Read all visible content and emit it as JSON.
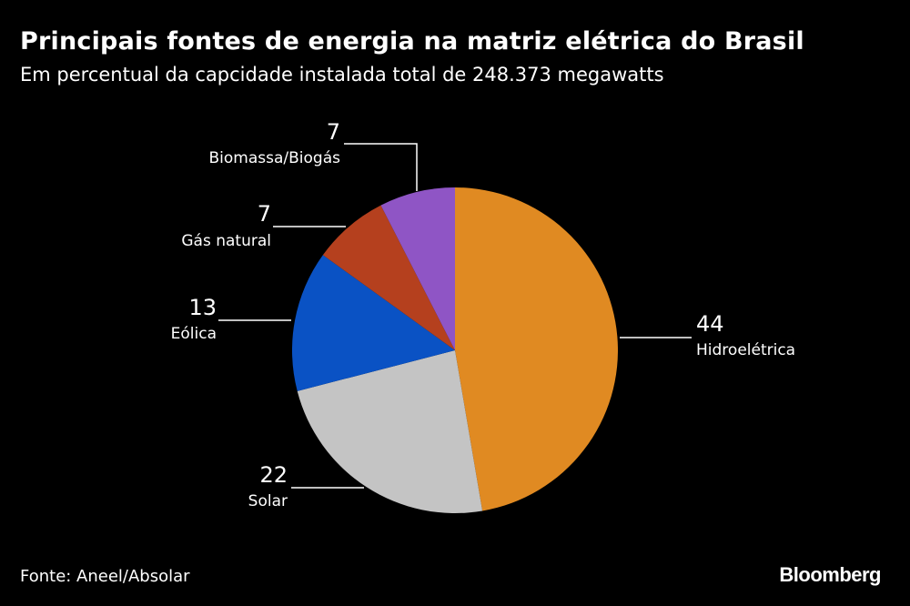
{
  "header": {
    "title": "Principais fontes de energia na matriz elétrica do Brasil",
    "subtitle": "Em percentual da capcidade instalada total de 248.373 megawatts"
  },
  "footer": {
    "source": "Fonte: Aneel/Absolar",
    "brand": "Bloomberg"
  },
  "chart_data": {
    "type": "pie",
    "slices": [
      {
        "label": "Hidroelétrica",
        "value": 44,
        "value_label": "44",
        "color": "#E08A22"
      },
      {
        "label": "Solar",
        "value": 22,
        "value_label": "22",
        "color": "#C4C4C4"
      },
      {
        "label": "Eólica",
        "value": 13,
        "value_label": "13",
        "color": "#0A52C4"
      },
      {
        "label": "Gás natural",
        "value": 7,
        "value_label": "7",
        "color": "#B5401E"
      },
      {
        "label": "Biomassa/Biogás",
        "value": 7,
        "value_label": "7",
        "color": "#8F55C5"
      }
    ],
    "start": "top",
    "direction": "clockwise"
  }
}
